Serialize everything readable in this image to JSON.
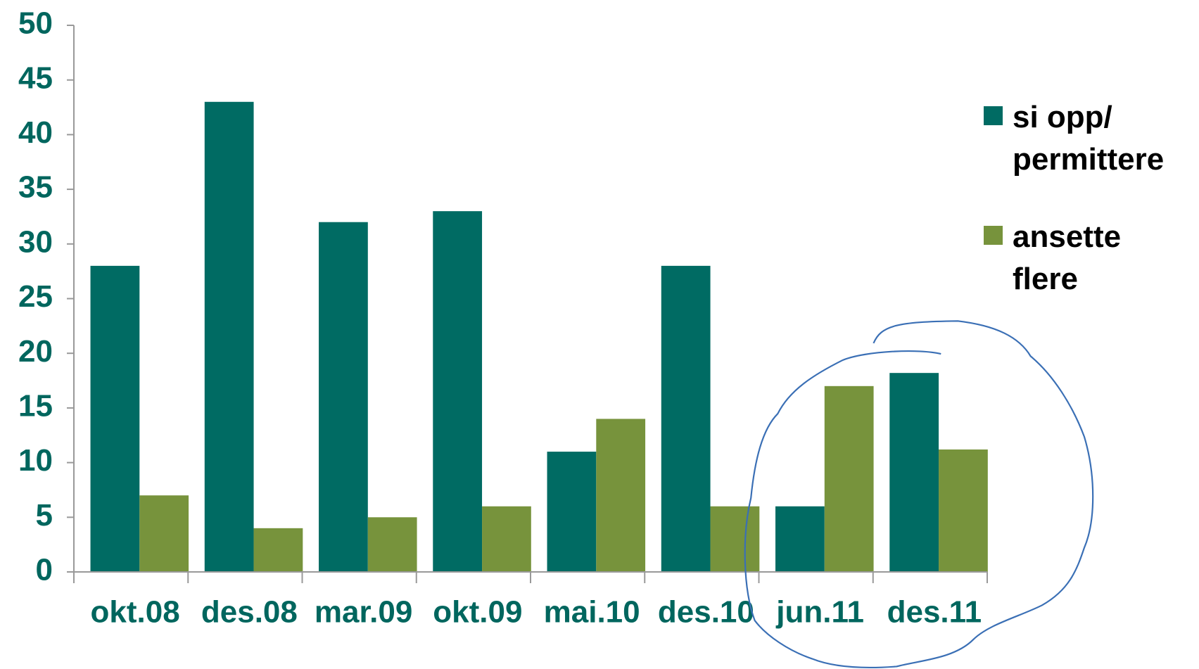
{
  "chart_data": {
    "type": "bar",
    "categories": [
      "okt.08",
      "des.08",
      "mar.09",
      "okt.09",
      "mai.10",
      "des.10",
      "jun.11",
      "des.11"
    ],
    "series": [
      {
        "name": "si opp/ permittere",
        "color": "#006b63",
        "values": [
          28,
          43,
          32,
          33,
          11,
          28,
          6,
          18.2
        ]
      },
      {
        "name": "ansette flere",
        "color": "#77933c",
        "values": [
          7,
          4,
          5,
          6,
          14,
          6,
          17,
          11.2
        ]
      }
    ],
    "ylim": [
      0,
      50
    ],
    "yticks": [
      0,
      5,
      10,
      15,
      20,
      25,
      30,
      35,
      40,
      45,
      50
    ]
  }
}
